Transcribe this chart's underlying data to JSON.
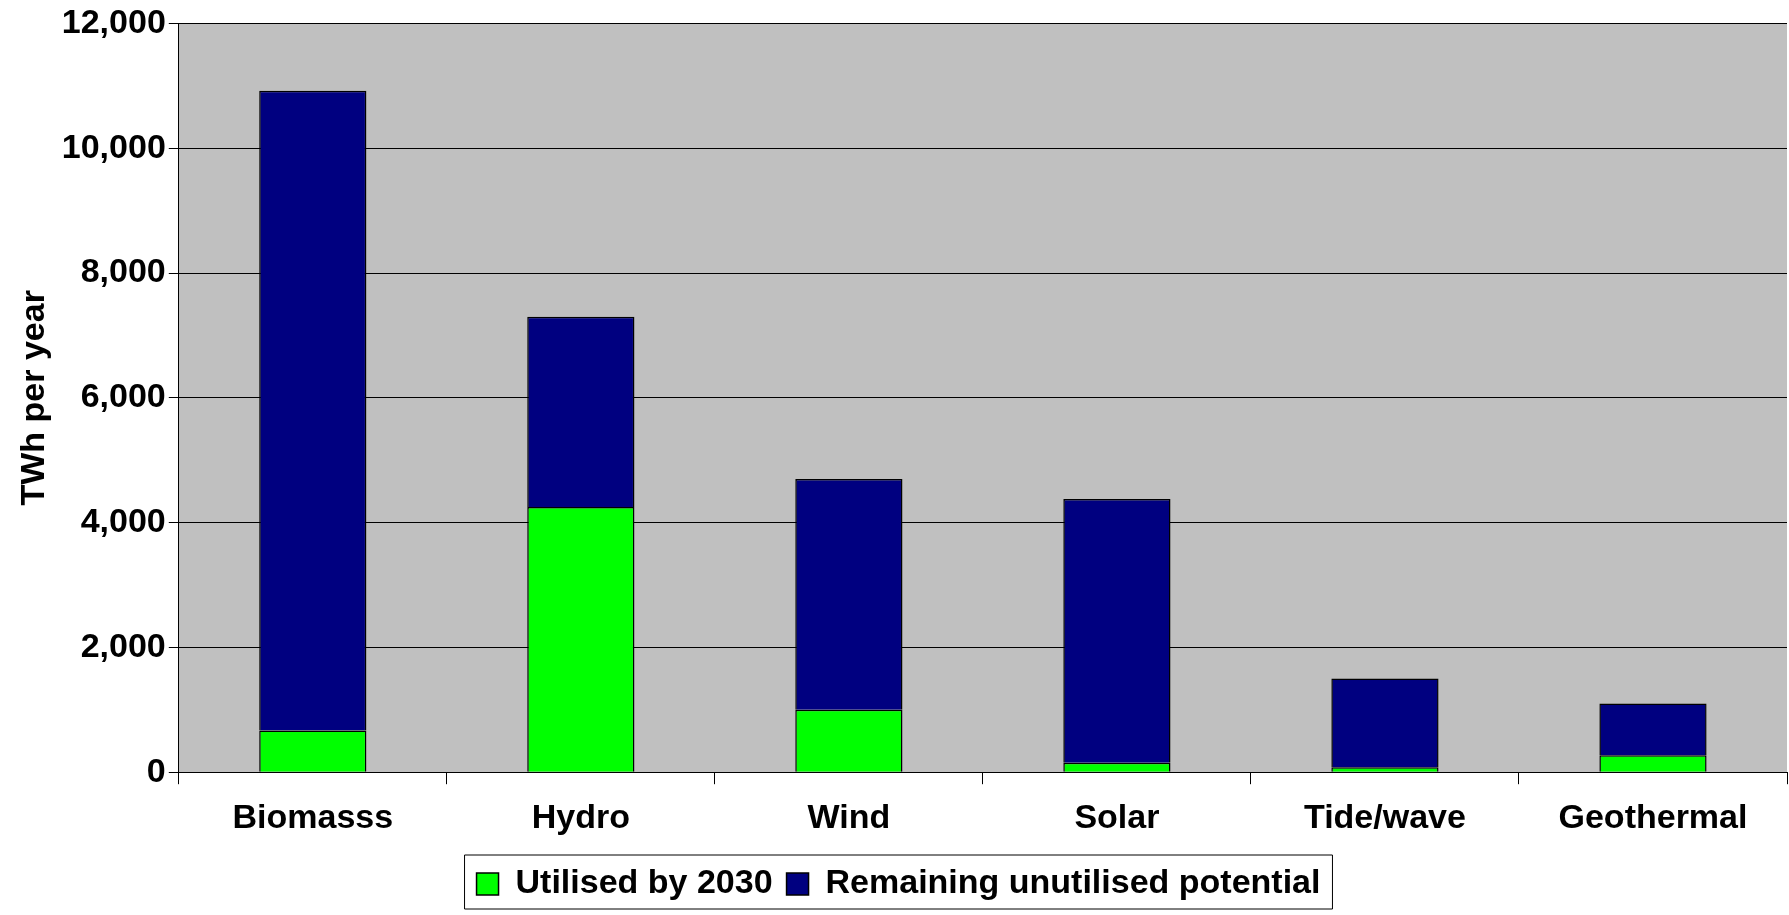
{
  "chart_data": {
    "type": "bar",
    "stacked": true,
    "ylabel": "TWh per year",
    "categories": [
      "Biomasss",
      "Hydro",
      "Wind",
      "Solar",
      "Tide/wave",
      "Geothermal"
    ],
    "series": [
      {
        "name": "Utilised by 2030",
        "color": "#00ff00",
        "values": [
          670,
          4250,
          1000,
          150,
          80,
          270
        ]
      },
      {
        "name": "Remaining unutilised potential",
        "color": "#000080",
        "values": [
          10250,
          3050,
          3700,
          4230,
          1420,
          830
        ]
      }
    ],
    "ylim": [
      0,
      12000
    ],
    "yticks": [
      {
        "value": 0,
        "label": "0"
      },
      {
        "value": 2000,
        "label": "2,000"
      },
      {
        "value": 4000,
        "label": "4,000"
      },
      {
        "value": 6000,
        "label": "6,000"
      },
      {
        "value": 8000,
        "label": "8,000"
      },
      {
        "value": 10000,
        "label": "10,000"
      },
      {
        "value": 12000,
        "label": "12,000"
      }
    ],
    "grid": "y",
    "legend": "bottom"
  }
}
